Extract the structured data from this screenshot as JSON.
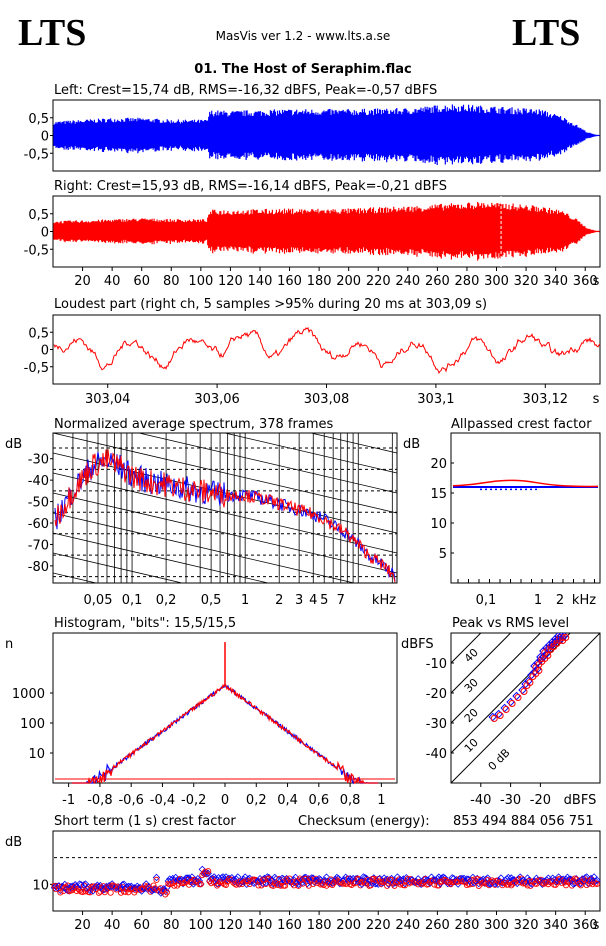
{
  "header": {
    "logo_left": "LTS",
    "logo_right": "LTS",
    "app_title": "MasVis ver 1.2 - www.lts.a.se",
    "file_title": "01. The Host of Seraphim.flac"
  },
  "colors": {
    "left": "#0000ff",
    "right": "#ff0000",
    "axis": "#000000"
  },
  "chart_data": [
    {
      "id": "left",
      "type": "area",
      "title": "Left: Crest=15,74 dB, RMS=-16,32 dBFS, Peak=-0,57 dBFS",
      "yticks": [
        "0,5",
        "0",
        "-0,5"
      ],
      "ylim": [
        -1,
        1
      ],
      "xlim": [
        0,
        370
      ],
      "envelope": {
        "t": [
          0,
          20,
          40,
          60,
          80,
          104,
          106,
          120,
          160,
          200,
          240,
          270,
          290,
          310,
          330,
          345,
          355,
          362,
          368
        ],
        "a": [
          0.4,
          0.45,
          0.5,
          0.5,
          0.45,
          0.45,
          0.72,
          0.7,
          0.75,
          0.75,
          0.78,
          0.9,
          0.85,
          0.8,
          0.75,
          0.55,
          0.3,
          0.1,
          0.02
        ]
      }
    },
    {
      "id": "right",
      "type": "area",
      "title": "Right: Crest=15,93 dB, RMS=-16,14 dBFS, Peak=-0,21 dBFS",
      "yticks": [
        "0,5",
        "0",
        "-0,5"
      ],
      "ylim": [
        -1,
        1
      ],
      "xlim": [
        0,
        370
      ],
      "xticks": [
        "20",
        "40",
        "60",
        "80",
        "100",
        "120",
        "140",
        "160",
        "180",
        "200",
        "220",
        "240",
        "260",
        "280",
        "300",
        "320",
        "340",
        "360",
        "s"
      ],
      "marker_x": 303.09,
      "envelope": {
        "t": [
          0,
          20,
          40,
          60,
          80,
          104,
          106,
          120,
          160,
          200,
          240,
          270,
          290,
          310,
          330,
          345,
          355,
          362,
          368
        ],
        "a": [
          0.3,
          0.32,
          0.35,
          0.38,
          0.35,
          0.35,
          0.62,
          0.62,
          0.65,
          0.65,
          0.72,
          0.8,
          0.85,
          0.8,
          0.72,
          0.6,
          0.35,
          0.1,
          0.02
        ]
      }
    },
    {
      "id": "loudest",
      "type": "line",
      "title": "Loudest part (right ch, 5 samples >95% during 20 ms at 303,09 s)",
      "yticks": [
        "0,5",
        "0",
        "-0,5"
      ],
      "ylim": [
        -1,
        1
      ],
      "xlim": [
        303.03,
        303.13
      ],
      "xticks": [
        "303,04",
        "303,06",
        "303,08",
        "303,1",
        "303,12",
        "s"
      ]
    },
    {
      "id": "spectrum",
      "type": "line",
      "title": "Normalized average spectrum, 378 frames",
      "ylabel": "dB",
      "yticks": [
        "-30",
        "-40",
        "-50",
        "-60",
        "-70",
        "-80"
      ],
      "ylim": [
        -88,
        -18
      ],
      "xticks": [
        "0,05",
        "0,1",
        "0,2",
        "0,5",
        "1",
        "2",
        "3",
        "4",
        "5",
        "7",
        "kHz"
      ],
      "xlim_khz": [
        0.02,
        22
      ],
      "shape": {
        "f": [
          0.02,
          0.03,
          0.045,
          0.06,
          0.08,
          0.1,
          0.15,
          0.2,
          0.3,
          0.5,
          0.7,
          1,
          1.5,
          2,
          3,
          4,
          5,
          6,
          8,
          10,
          13,
          16,
          20,
          22
        ],
        "db": [
          -60,
          -45,
          -33,
          -31,
          -34,
          -38,
          -41,
          -42,
          -44,
          -46,
          -47,
          -47,
          -49,
          -51,
          -54,
          -56,
          -58,
          -61,
          -65,
          -70,
          -76,
          -79,
          -84,
          -86
        ]
      }
    },
    {
      "id": "allpassed_crest",
      "type": "line",
      "title": "Allpassed crest factor",
      "ylabel": "dB",
      "yticks": [
        "20",
        "15",
        "10",
        "5"
      ],
      "ylim": [
        0,
        25
      ],
      "xticks": [
        "0,1",
        "1",
        "2",
        "kHz"
      ],
      "series": [
        {
          "name": "left",
          "level": 16.0
        },
        {
          "name": "right",
          "level": 16.2
        }
      ]
    },
    {
      "id": "histogram",
      "type": "line",
      "title": "Histogram, \"bits\": 15,5/15,5",
      "ylabel": "n",
      "yticks": [
        "1000",
        "100",
        "10"
      ],
      "ylim_log": [
        1,
        100000
      ],
      "xticks": [
        "-1",
        "-0,8",
        "-0,6",
        "-0,4",
        "-0,2",
        "0",
        "0,2",
        "0,4",
        "0,6",
        "0,8",
        "1"
      ],
      "xlim": [
        -1.1,
        1.1
      ],
      "peak_count": 1800,
      "spike_count": 50000
    },
    {
      "id": "peak_vs_rms",
      "type": "scatter",
      "title": "Peak vs RMS level",
      "ylabel": "dBFS",
      "xlabel": "dBFS",
      "yticks": [
        "-10",
        "-20",
        "-30",
        "-40"
      ],
      "xticks": [
        "-40",
        "-30",
        "-20"
      ],
      "xlim": [
        -50,
        0
      ],
      "ylim": [
        -50,
        0
      ],
      "diagonal_labels": [
        "40",
        "30",
        "20",
        "10",
        "0 dB"
      ],
      "points_rms": [
        -36,
        -34,
        -32,
        -30,
        -28,
        -26,
        -25,
        -24,
        -23,
        -22,
        -22,
        -21,
        -21,
        -20,
        -20,
        -19,
        -19,
        -18,
        -18,
        -17,
        -17,
        -16,
        -16,
        -15,
        -15,
        -14,
        -14,
        -13,
        -13,
        -12
      ],
      "points_peak": [
        -28,
        -27,
        -25,
        -23,
        -21,
        -19,
        -17,
        -16,
        -14,
        -13,
        -11,
        -12,
        -10,
        -9,
        -8,
        -8,
        -6,
        -7,
        -5,
        -5,
        -4,
        -3,
        -4,
        -2,
        -3,
        -2,
        -1,
        -2,
        -1,
        -1
      ]
    },
    {
      "id": "short_term_crest",
      "type": "scatter",
      "title": "Short term (1 s) crest factor",
      "checksum_label": "Checksum (energy):",
      "checksum_value": "853 494 884 056 751",
      "ylabel": "dB",
      "yticks": [
        "10"
      ],
      "ylim": [
        5,
        20
      ],
      "dashed_level": 15,
      "xlim": [
        0,
        370
      ],
      "xticks": [
        "20",
        "40",
        "60",
        "80",
        "100",
        "120",
        "140",
        "160",
        "180",
        "200",
        "220",
        "240",
        "260",
        "280",
        "300",
        "320",
        "340",
        "360",
        "s"
      ]
    }
  ]
}
